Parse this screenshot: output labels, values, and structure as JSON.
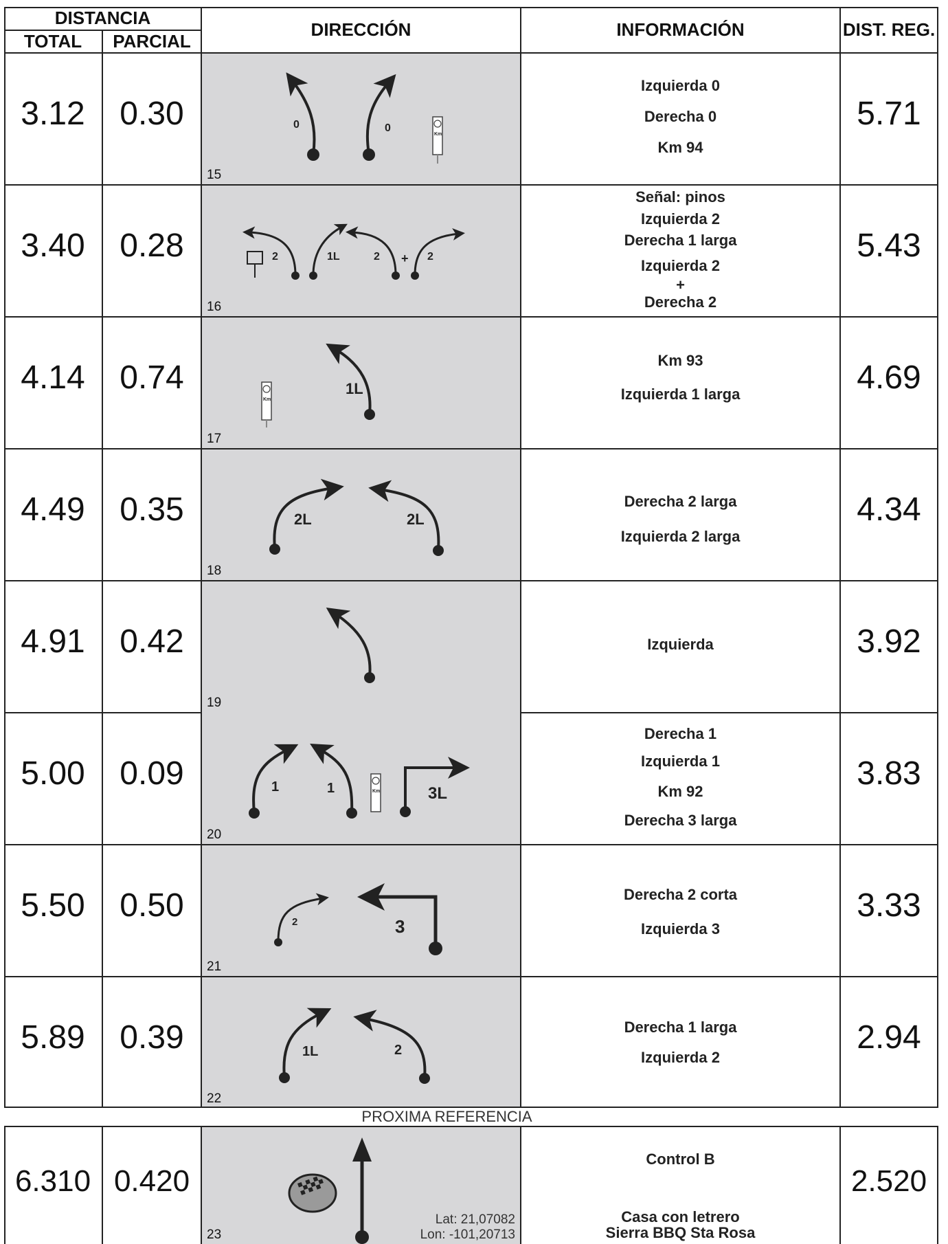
{
  "header": {
    "distancia": "DISTANCIA",
    "total": "TOTAL",
    "parcial": "PARCIAL",
    "direccion": "DIRECCIÓN",
    "informacion": "INFORMACIÓN",
    "dist_reg": "DIST. REG."
  },
  "rows": [
    {
      "total": "3.12",
      "parcial": "0.30",
      "num": "15",
      "reg": "5.71",
      "info": [
        "Izquierda 0",
        "Derecha 0",
        "Km 94"
      ],
      "labels": [
        "0",
        "0"
      ]
    },
    {
      "total": "3.40",
      "parcial": "0.28",
      "num": "16",
      "reg": "5.43",
      "info": [
        "Señal: pinos",
        "Izquierda 2",
        "Derecha 1 larga",
        "Izquierda 2",
        "+",
        "Derecha 2"
      ],
      "labels": [
        "2",
        "1L",
        "2",
        "+",
        "2"
      ]
    },
    {
      "total": "4.14",
      "parcial": "0.74",
      "num": "17",
      "reg": "4.69",
      "info": [
        "Km 93",
        "Izquierda 1 larga"
      ],
      "labels": [
        "1L"
      ]
    },
    {
      "total": "4.49",
      "parcial": "0.35",
      "num": "18",
      "reg": "4.34",
      "info": [
        "Derecha 2 larga",
        "Izquierda 2 larga"
      ],
      "labels": [
        "2L",
        "2L"
      ]
    },
    {
      "total": "4.91",
      "parcial": "0.42",
      "num": "19",
      "reg": "3.92",
      "info": [
        "Izquierda"
      ],
      "labels": []
    },
    {
      "total": "5.00",
      "parcial": "0.09",
      "num": "20",
      "reg": "3.83",
      "info": [
        "Derecha 1",
        "Izquierda 1",
        "Km 92",
        "Derecha 3 larga"
      ],
      "labels": [
        "1",
        "1",
        "3L"
      ]
    },
    {
      "total": "5.50",
      "parcial": "0.50",
      "num": "21",
      "reg": "3.33",
      "info": [
        "Derecha 2 corta",
        "Izquierda 3"
      ],
      "labels": [
        "2",
        "3"
      ]
    },
    {
      "total": "5.89",
      "parcial": "0.39",
      "num": "22",
      "reg": "2.94",
      "info": [
        "Derecha 1 larga",
        "Izquierda 2"
      ],
      "labels": [
        "1L",
        "2"
      ]
    }
  ],
  "next_ref": {
    "title": "PROXIMA REFERENCIA",
    "total": "6.310",
    "parcial": "0.420",
    "num": "23",
    "reg": "2.520",
    "info": [
      "Control B",
      "Casa con letrero",
      "Sierra BBQ Sta Rosa"
    ],
    "lat": "Lat: 21,07082",
    "lon": "Lon: -101,20713"
  },
  "km_sign_text": "Km",
  "colors": {
    "cell_gray": "#d7d7d9",
    "ink": "#222222"
  }
}
